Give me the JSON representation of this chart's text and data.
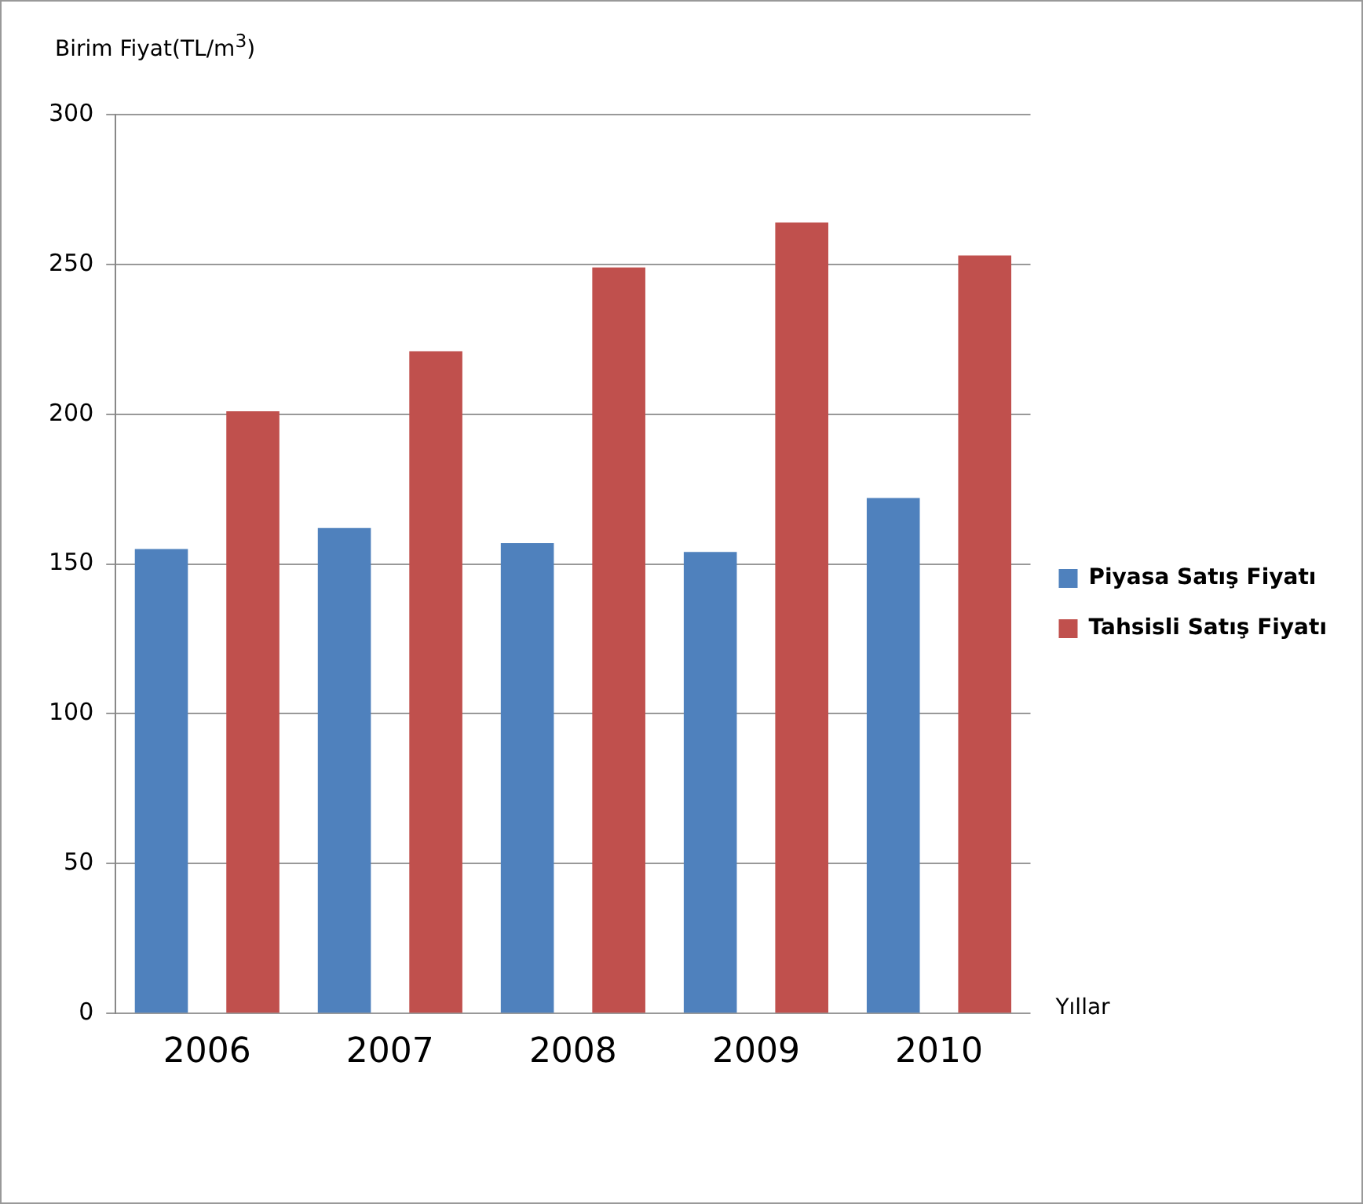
{
  "chart_data": {
    "type": "bar",
    "ylabel": "Birim Fiyat(TL/m$^{3}$)",
    "xlabel": "Yıllar",
    "categories": [
      "2006",
      "2007",
      "2008",
      "2009",
      "2010"
    ],
    "series": [
      {
        "name": "Piyasa Satış Fiyatı",
        "color": "#4f81bd",
        "values": [
          155,
          162,
          157,
          154,
          172
        ]
      },
      {
        "name": "Tahsisli Satış Fiyatı",
        "color": "#c0504d",
        "values": [
          201,
          221,
          249,
          264,
          253
        ]
      }
    ],
    "ylim": [
      0,
      300
    ],
    "yticks": [
      0,
      50,
      100,
      150,
      200,
      250,
      300
    ],
    "grid": "y",
    "legend": "right"
  }
}
